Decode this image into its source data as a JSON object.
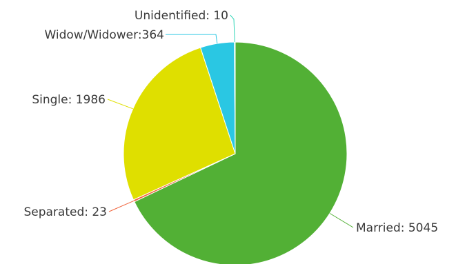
{
  "chart_data": {
    "type": "pie",
    "slices": [
      {
        "name": "Married",
        "value": 5045,
        "label": "Married: 5045",
        "color": "#52b035"
      },
      {
        "name": "Separated",
        "value": 23,
        "label": "Separated: 23",
        "color": "#f0643c"
      },
      {
        "name": "Single",
        "value": 1986,
        "label": "Single: 1986",
        "color": "#dfdf00"
      },
      {
        "name": "Widow/Widower",
        "value": 364,
        "label": "Widow/Widower:364",
        "color": "#2ac7e3"
      },
      {
        "name": "Unidentified",
        "value": 10,
        "label": "Unidentified: 10",
        "color": "#33d6b8"
      }
    ],
    "start_angle": "12 o'clock",
    "direction": "clockwise",
    "legend": "none"
  }
}
